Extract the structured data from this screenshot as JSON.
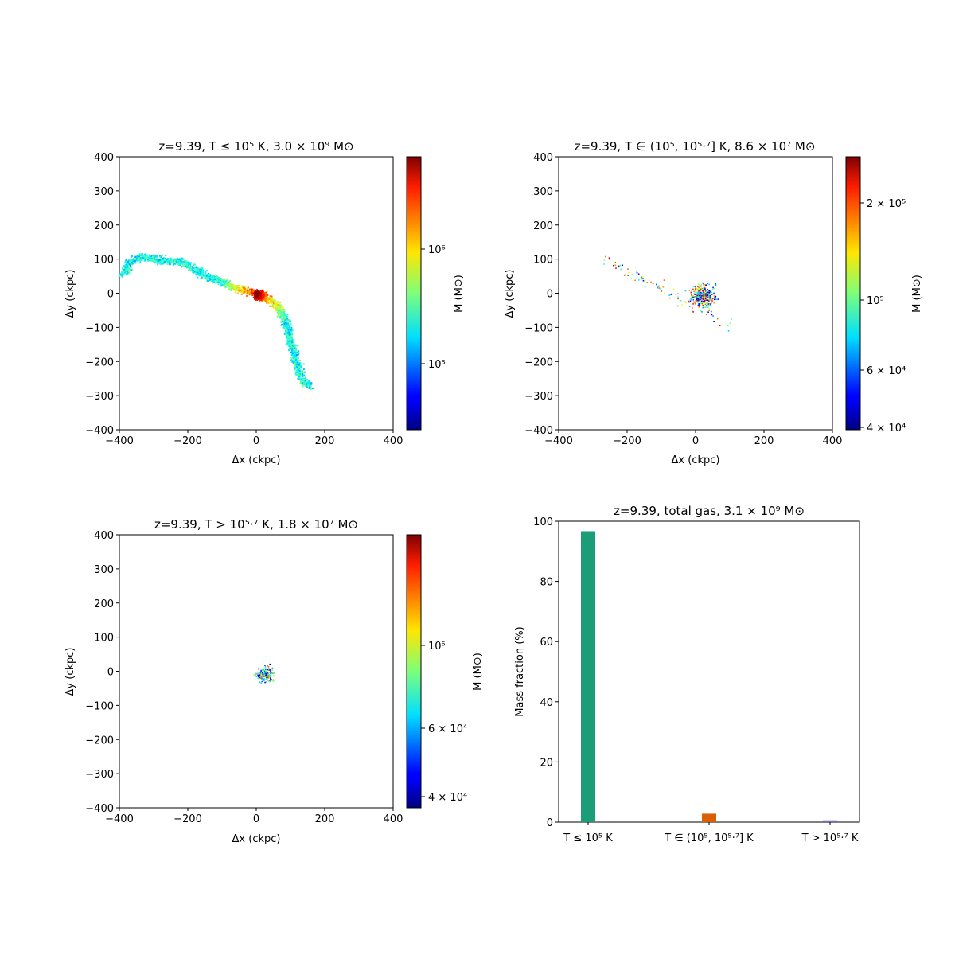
{
  "chart_data": [
    {
      "type": "heatmap",
      "title": "z=9.39, T ≤ 10⁵ K, 3.0 × 10⁹ M⊙",
      "xlabel": "Δx (ckpc)",
      "ylabel": "Δy (ckpc)",
      "xlim": [
        -400,
        400
      ],
      "ylim": [
        -400,
        400
      ],
      "xticks": [
        "−400",
        "−200",
        "0",
        "200",
        "400"
      ],
      "yticks": [
        "400",
        "300",
        "200",
        "100",
        "0",
        "−100",
        "−200",
        "−300",
        "−400"
      ],
      "colorbar": {
        "label": "M (M⊙)",
        "scale": "log",
        "range": [
          30000,
          7000000
        ],
        "ticks": [
          "10⁵",
          "10⁶"
        ]
      },
      "colormap": "jet",
      "filament": [
        [
          -390,
          55
        ],
        [
          -370,
          95
        ],
        [
          -330,
          110
        ],
        [
          -290,
          100
        ],
        [
          -250,
          95
        ],
        [
          -220,
          95
        ],
        [
          -180,
          70
        ],
        [
          -140,
          50
        ],
        [
          -100,
          35
        ],
        [
          -70,
          20
        ],
        [
          -40,
          10
        ],
        [
          -10,
          5
        ],
        [
          10,
          0
        ],
        [
          30,
          -15
        ],
        [
          55,
          -30
        ],
        [
          75,
          -60
        ],
        [
          90,
          -100
        ],
        [
          100,
          -140
        ],
        [
          110,
          -180
        ],
        [
          120,
          -220
        ],
        [
          135,
          -255
        ],
        [
          155,
          -270
        ]
      ],
      "peak": [
        0,
        0
      ]
    },
    {
      "type": "heatmap",
      "title": "z=9.39, T ∈ (10⁵, 10⁵·⁷] K, 8.6 × 10⁷ M⊙",
      "xlabel": "Δx (ckpc)",
      "ylabel": "Δy (ckpc)",
      "xlim": [
        -400,
        400
      ],
      "ylim": [
        -400,
        400
      ],
      "xticks": [
        "−400",
        "−200",
        "0",
        "200",
        "400"
      ],
      "yticks": [
        "400",
        "300",
        "200",
        "100",
        "0",
        "−100",
        "−200",
        "−300",
        "−400"
      ],
      "colorbar": {
        "label": "M (M⊙)",
        "scale": "log",
        "range": [
          38000,
          300000
        ],
        "ticks": [
          "4 × 10⁴",
          "6 × 10⁴",
          "10⁵",
          "2 × 10⁵"
        ]
      },
      "colormap": "jet"
    },
    {
      "type": "heatmap",
      "title": "z=9.39, T > 10⁵·⁷ K, 1.8 × 10⁷ M⊙",
      "xlabel": "Δx (ckpc)",
      "ylabel": "Δy (ckpc)",
      "xlim": [
        -400,
        400
      ],
      "ylim": [
        -400,
        400
      ],
      "xticks": [
        "−400",
        "−200",
        "0",
        "200",
        "400"
      ],
      "yticks": [
        "400",
        "300",
        "200",
        "100",
        "0",
        "−100",
        "−200",
        "−300",
        "−400"
      ],
      "colorbar": {
        "label": "M (M⊙)",
        "scale": "log",
        "range": [
          36000,
          220000
        ],
        "ticks": [
          "4 × 10⁴",
          "6 × 10⁴",
          "10⁵"
        ]
      },
      "colormap": "jet"
    },
    {
      "type": "bar",
      "title": "z=9.39, total gas, 3.1 × 10⁹ M⊙",
      "xlabel": "",
      "ylabel": "Mass fraction (%)",
      "ylim": [
        0,
        100
      ],
      "yticks": [
        "0",
        "20",
        "40",
        "60",
        "80",
        "100"
      ],
      "categories": [
        "T ≤ 10⁵ K",
        "T ∈ (10⁵, 10⁵·⁷] K",
        "T > 10⁵·⁷ K"
      ],
      "values": [
        96.7,
        2.8,
        0.6
      ],
      "colors": [
        "#1b9e77",
        "#d95f02",
        "#7570b3"
      ]
    }
  ]
}
